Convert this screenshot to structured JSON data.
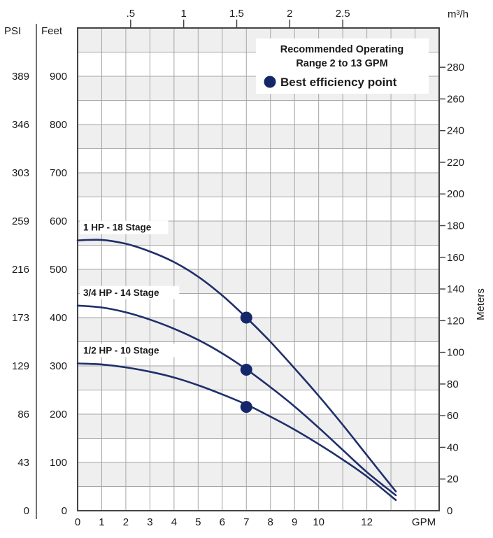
{
  "chart_data": {
    "type": "line",
    "title": "",
    "xlabel": "GPM",
    "ylabel_left_psi": "PSI",
    "ylabel_left_feet": "Feet",
    "ylabel_right": "Meters",
    "top_axis_unit": "m³/h",
    "xlim": [
      0,
      15
    ],
    "ylim_feet": [
      0,
      1000
    ],
    "x_ticks": [
      {
        "value": 0,
        "label": "0"
      },
      {
        "value": 1,
        "label": "1"
      },
      {
        "value": 2,
        "label": "2"
      },
      {
        "value": 3,
        "label": "3"
      },
      {
        "value": 4,
        "label": "4"
      },
      {
        "value": 5,
        "label": "5"
      },
      {
        "value": 6,
        "label": "6"
      },
      {
        "value": 7,
        "label": "7"
      },
      {
        "value": 8,
        "label": "8"
      },
      {
        "value": 9,
        "label": "9"
      },
      {
        "value": 10,
        "label": "10"
      },
      {
        "value": 12,
        "label": "12"
      }
    ],
    "feet_ticks": [
      {
        "value": 0,
        "label": "0"
      },
      {
        "value": 100,
        "label": "100"
      },
      {
        "value": 200,
        "label": "200"
      },
      {
        "value": 300,
        "label": "300"
      },
      {
        "value": 400,
        "label": "400"
      },
      {
        "value": 500,
        "label": "500"
      },
      {
        "value": 600,
        "label": "600"
      },
      {
        "value": 700,
        "label": "700"
      },
      {
        "value": 800,
        "label": "800"
      },
      {
        "value": 900,
        "label": "900"
      }
    ],
    "psi_ticks": [
      {
        "feet": 0,
        "label": "0"
      },
      {
        "feet": 100,
        "label": "43"
      },
      {
        "feet": 200,
        "label": "86"
      },
      {
        "feet": 300,
        "label": "129"
      },
      {
        "feet": 400,
        "label": "173"
      },
      {
        "feet": 500,
        "label": "216"
      },
      {
        "feet": 600,
        "label": "259"
      },
      {
        "feet": 700,
        "label": "303"
      },
      {
        "feet": 800,
        "label": "346"
      },
      {
        "feet": 900,
        "label": "389"
      }
    ],
    "meter_ticks": [
      {
        "value": 0,
        "label": "0"
      },
      {
        "value": 20,
        "label": "20"
      },
      {
        "value": 40,
        "label": "40"
      },
      {
        "value": 60,
        "label": "60"
      },
      {
        "value": 80,
        "label": "80"
      },
      {
        "value": 100,
        "label": "100"
      },
      {
        "value": 120,
        "label": "120"
      },
      {
        "value": 140,
        "label": "140"
      },
      {
        "value": 160,
        "label": "160"
      },
      {
        "value": 180,
        "label": "180"
      },
      {
        "value": 200,
        "label": "200"
      },
      {
        "value": 220,
        "label": "220"
      },
      {
        "value": 240,
        "label": "240"
      },
      {
        "value": 260,
        "label": "260"
      },
      {
        "value": 280,
        "label": "280"
      }
    ],
    "top_ticks": [
      {
        "gpm": 2.2,
        "label": ".5"
      },
      {
        "gpm": 4.4,
        "label": "1"
      },
      {
        "gpm": 6.6,
        "label": "1.5"
      },
      {
        "gpm": 8.8,
        "label": "2"
      },
      {
        "gpm": 11.0,
        "label": "2.5"
      }
    ],
    "series": [
      {
        "name": "1 HP - 18 Stage",
        "x": [
          0,
          1,
          2,
          3,
          4,
          5,
          6,
          7,
          8,
          9,
          10,
          11,
          12,
          13.2
        ],
        "y": [
          560,
          561,
          553,
          537,
          515,
          485,
          446,
          400,
          350,
          295,
          238,
          178,
          115,
          40
        ]
      },
      {
        "name": "3/4 HP - 14 Stage",
        "x": [
          0,
          1,
          2,
          3,
          4,
          5,
          6,
          7,
          8,
          9,
          10,
          11,
          12,
          13.2
        ],
        "y": [
          425,
          421,
          411,
          396,
          377,
          354,
          326,
          293,
          256,
          216,
          172,
          126,
          80,
          32
        ]
      },
      {
        "name": "1/2 HP - 10 Stage",
        "x": [
          0,
          1,
          2,
          3,
          4,
          5,
          6,
          7,
          8,
          9,
          10,
          11,
          12,
          13.2
        ],
        "y": [
          305,
          303,
          297,
          288,
          276,
          260,
          241,
          220,
          195,
          168,
          138,
          106,
          71,
          22
        ]
      }
    ],
    "bep_points": [
      {
        "x": 7,
        "y": 400
      },
      {
        "x": 7,
        "y": 292
      },
      {
        "x": 7,
        "y": 215
      }
    ],
    "legend": {
      "position": "top-right",
      "line1": "Recommended Operating",
      "line2": "Range 2 to 13 GPM",
      "point_label": "Best efficiency point"
    },
    "grid": true,
    "colors": {
      "curve": "#1f2f6b",
      "point": "#14276a",
      "band": "#efefef",
      "grid": "#a6a6a6",
      "axis": "#444444"
    }
  }
}
